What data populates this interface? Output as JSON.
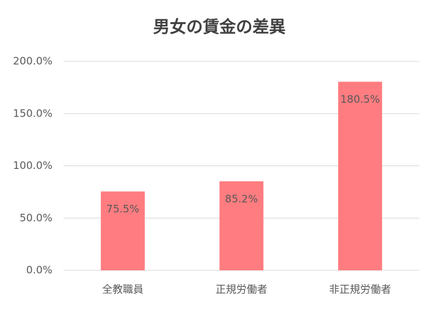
{
  "chart_data": {
    "type": "bar",
    "title": "男女の賃金の差異",
    "categories": [
      "全教職員",
      "正規労働者",
      "非正規労働者"
    ],
    "values": [
      75.5,
      85.2,
      180.5
    ],
    "value_labels": [
      "75.5%",
      "85.2%",
      "180.5%"
    ],
    "color": "#ff7c80",
    "ylim": [
      0,
      200
    ],
    "yticks": [
      {
        "value": 0,
        "label": "0.0%"
      },
      {
        "value": 50,
        "label": "50.0%"
      },
      {
        "value": 100,
        "label": "100.0%"
      },
      {
        "value": 150,
        "label": "150.0%"
      },
      {
        "value": 200,
        "label": "200.0%"
      }
    ],
    "grid": true
  }
}
